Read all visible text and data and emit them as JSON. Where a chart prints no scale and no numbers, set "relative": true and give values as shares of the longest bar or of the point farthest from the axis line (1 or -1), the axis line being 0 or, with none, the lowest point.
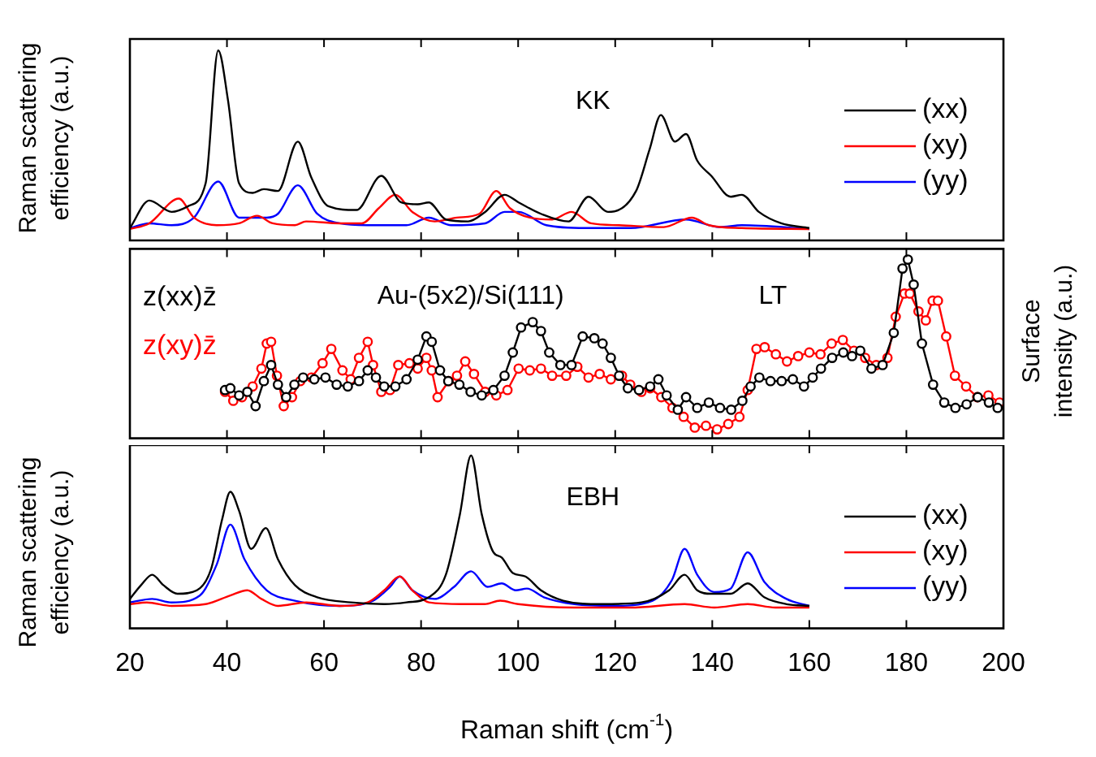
{
  "chart_data": [
    {
      "type": "line",
      "relative": true,
      "ylabel": "Raman scattering efficiency (a.u.)",
      "annotations": [
        "KK"
      ],
      "xlim": [
        20,
        200
      ],
      "xticks": [
        20,
        40,
        60,
        80,
        100,
        120,
        140,
        160,
        180,
        200
      ],
      "tick_labels": false,
      "legend": "right",
      "marker": "none",
      "series": [
        {
          "name": "(xx)",
          "color": "#000000",
          "x": [
            20,
            24,
            28.6,
            32,
            35.6,
            38.2,
            40.2,
            42.5,
            45.3,
            47.6,
            50.5,
            54.6,
            57.4,
            60.9,
            66.7,
            71.8,
            75.9,
            79.3,
            81.6,
            85.1,
            89.7,
            93.2,
            97.2,
            100.1,
            104.7,
            110.4,
            114.5,
            118.5,
            124.3,
            127.1,
            129.4,
            132.3,
            134.6,
            136.9,
            139.8,
            143.8,
            146.1,
            149.6,
            154.2,
            160
          ],
          "values": [
            0.065,
            0.21,
            0.15,
            0.18,
            0.3,
            1.0,
            0.74,
            0.3,
            0.25,
            0.27,
            0.26,
            0.52,
            0.33,
            0.18,
            0.16,
            0.34,
            0.2,
            0.19,
            0.2,
            0.11,
            0.1,
            0.15,
            0.24,
            0.2,
            0.14,
            0.1,
            0.23,
            0.15,
            0.26,
            0.48,
            0.66,
            0.52,
            0.56,
            0.42,
            0.34,
            0.23,
            0.24,
            0.15,
            0.09,
            0.065
          ]
        },
        {
          "name": "(xy)",
          "color": "#ff0000",
          "x": [
            20,
            24,
            30.1,
            33.2,
            37.9,
            42.5,
            46.2,
            49.4,
            54,
            56.3,
            63.2,
            67.8,
            71.3,
            74.7,
            78.2,
            82.8,
            87.4,
            92,
            95.5,
            98.3,
            102.4,
            107,
            111,
            115,
            120.8,
            130,
            135.8,
            139.3,
            146.1,
            160
          ],
          "values": [
            0.06,
            0.09,
            0.22,
            0.12,
            0.08,
            0.09,
            0.13,
            0.09,
            0.08,
            0.1,
            0.09,
            0.09,
            0.17,
            0.24,
            0.15,
            0.1,
            0.12,
            0.14,
            0.26,
            0.17,
            0.12,
            0.11,
            0.15,
            0.09,
            0.08,
            0.07,
            0.12,
            0.08,
            0.065,
            0.06
          ]
        },
        {
          "name": "(yy)",
          "color": "#0000ff",
          "x": [
            20,
            24,
            28.6,
            33.2,
            38.2,
            42.5,
            48.2,
            50.5,
            54.6,
            58.6,
            63.2,
            68.9,
            77,
            81.6,
            86.2,
            93.2,
            97.2,
            100.1,
            105.8,
            113.9,
            123.1,
            134.6,
            141.5,
            146.1,
            160
          ],
          "values": [
            0.065,
            0.09,
            0.08,
            0.12,
            0.31,
            0.12,
            0.12,
            0.14,
            0.29,
            0.14,
            0.09,
            0.08,
            0.08,
            0.12,
            0.08,
            0.09,
            0.15,
            0.15,
            0.08,
            0.065,
            0.065,
            0.11,
            0.07,
            0.08,
            0.06
          ]
        }
      ]
    },
    {
      "type": "line",
      "relative": true,
      "ylabel": "Surface intensity (a.u.)",
      "annotations": [
        "Au-(5x2)/Si(111)",
        "LT"
      ],
      "xlim": [
        20,
        200
      ],
      "xticks": [
        20,
        40,
        60,
        80,
        100,
        120,
        140,
        160,
        180,
        200
      ],
      "tick_labels": false,
      "legend": "top left",
      "marker": "circle",
      "series": [
        {
          "name": "z(xx)z̄",
          "color": "#000000",
          "x": [
            39.6,
            40.7,
            42.5,
            44.2,
            45.9,
            47.6,
            49.1,
            50.5,
            52.2,
            53.9,
            55.7,
            58,
            60.3,
            62.6,
            64.9,
            67.2,
            69,
            70.7,
            72.4,
            74.7,
            77,
            79.3,
            81.1,
            82.2,
            83.9,
            85.6,
            87.9,
            90.2,
            92.5,
            94.9,
            97.2,
            98.9,
            100.6,
            103,
            104.7,
            106.4,
            108.7,
            111,
            113.3,
            115.7,
            117.4,
            119.1,
            120.8,
            122.6,
            124.9,
            127.2,
            128.9,
            130.6,
            132.9,
            134.6,
            136.9,
            139.3,
            141.6,
            143.9,
            146.2,
            147.9,
            149.7,
            152,
            154.3,
            156.6,
            158.9,
            160.7,
            162.4,
            164.7,
            167,
            168.8,
            170.5,
            172.8,
            175.1,
            177.4,
            179.2,
            180.3,
            181.5,
            183.2,
            185.5,
            187.8,
            190.1,
            192.4,
            194.7,
            197,
            198.8
          ],
          "values": [
            0.27,
            0.28,
            0.24,
            0.26,
            0.18,
            0.32,
            0.41,
            0.3,
            0.23,
            0.3,
            0.34,
            0.33,
            0.34,
            0.3,
            0.29,
            0.32,
            0.38,
            0.34,
            0.29,
            0.29,
            0.33,
            0.44,
            0.57,
            0.54,
            0.38,
            0.32,
            0.3,
            0.26,
            0.24,
            0.27,
            0.35,
            0.48,
            0.62,
            0.65,
            0.6,
            0.48,
            0.41,
            0.41,
            0.57,
            0.56,
            0.53,
            0.45,
            0.35,
            0.28,
            0.27,
            0.29,
            0.33,
            0.24,
            0.16,
            0.23,
            0.17,
            0.2,
            0.17,
            0.16,
            0.21,
            0.29,
            0.34,
            0.32,
            0.32,
            0.33,
            0.29,
            0.34,
            0.39,
            0.45,
            0.48,
            0.46,
            0.49,
            0.39,
            0.41,
            0.59,
            0.95,
            1.0,
            0.86,
            0.53,
            0.3,
            0.2,
            0.17,
            0.19,
            0.23,
            0.2,
            0.17
          ]
        },
        {
          "name": "z(xy)z̄",
          "color": "#ff0000",
          "x": [
            39.6,
            41.3,
            43.1,
            45.3,
            47.1,
            48.2,
            49.1,
            50.3,
            51.7,
            53.4,
            55.1,
            57.4,
            59.7,
            61.5,
            63.8,
            65.5,
            67.2,
            69,
            70.1,
            71.8,
            73.6,
            75.3,
            77.6,
            79.3,
            81.1,
            82.2,
            83.4,
            85.7,
            87.4,
            89.1,
            90.9,
            93.2,
            95.5,
            97.8,
            100.1,
            102.4,
            104.7,
            107,
            109.9,
            112.2,
            114.5,
            116.8,
            119.1,
            121.4,
            123.1,
            125.4,
            127.2,
            129.5,
            131.8,
            134.1,
            136.4,
            138.7,
            141,
            143.3,
            145.6,
            147.3,
            149.1,
            150.8,
            153.1,
            155.4,
            157.7,
            160,
            162.3,
            164.6,
            166.9,
            169.2,
            171.5,
            173.8,
            176.1,
            177.8,
            179.6,
            180.7,
            182.5,
            184,
            185.4,
            186.5,
            188.2,
            190,
            192.3,
            194.6,
            196.9,
            199.2
          ],
          "values": [
            0.26,
            0.21,
            0.23,
            0.29,
            0.39,
            0.53,
            0.54,
            0.35,
            0.18,
            0.23,
            0.32,
            0.34,
            0.42,
            0.5,
            0.38,
            0.33,
            0.45,
            0.54,
            0.41,
            0.26,
            0.27,
            0.41,
            0.42,
            0.39,
            0.45,
            0.38,
            0.23,
            0.32,
            0.35,
            0.43,
            0.36,
            0.26,
            0.24,
            0.27,
            0.39,
            0.38,
            0.39,
            0.35,
            0.35,
            0.4,
            0.34,
            0.36,
            0.33,
            0.35,
            0.3,
            0.26,
            0.28,
            0.23,
            0.17,
            0.12,
            0.06,
            0.07,
            0.05,
            0.08,
            0.12,
            0.27,
            0.5,
            0.51,
            0.47,
            0.43,
            0.46,
            0.48,
            0.47,
            0.53,
            0.55,
            0.49,
            0.45,
            0.41,
            0.45,
            0.68,
            0.81,
            0.81,
            0.71,
            0.66,
            0.77,
            0.77,
            0.57,
            0.35,
            0.29,
            0.23,
            0.24,
            0.2
          ]
        }
      ]
    },
    {
      "type": "line",
      "relative": true,
      "xlabel": "Raman shift (cm$^{-1}$)",
      "ylabel": "Raman scattering efficiency (a.u.)",
      "annotations": [
        "EBH"
      ],
      "xlim": [
        20,
        200
      ],
      "xticks": [
        20,
        40,
        60,
        80,
        100,
        120,
        140,
        160,
        180,
        200
      ],
      "tick_labels": "x",
      "legend": "right",
      "marker": "none",
      "series": [
        {
          "name": "(xx)",
          "color": "#000000",
          "x": [
            20,
            22.3,
            24.6,
            26.9,
            29.8,
            33.8,
            36.7,
            39,
            40.7,
            42.5,
            45,
            48,
            50.5,
            54,
            58.6,
            65.5,
            72.4,
            77,
            81.6,
            85.1,
            88,
            90.3,
            92.5,
            94.9,
            96.6,
            98.9,
            101.5,
            104.7,
            109.3,
            117.3,
            125.4,
            131.1,
            134.3,
            136.9,
            139.8,
            143.8,
            147.3,
            150.7,
            155.3,
            160
          ],
          "values": [
            0.17,
            0.25,
            0.31,
            0.25,
            0.2,
            0.22,
            0.34,
            0.63,
            0.79,
            0.68,
            0.46,
            0.58,
            0.4,
            0.25,
            0.18,
            0.15,
            0.14,
            0.15,
            0.18,
            0.31,
            0.66,
            1.0,
            0.66,
            0.44,
            0.41,
            0.32,
            0.3,
            0.22,
            0.16,
            0.14,
            0.15,
            0.22,
            0.31,
            0.22,
            0.2,
            0.2,
            0.26,
            0.18,
            0.14,
            0.13
          ]
        },
        {
          "name": "(xy)",
          "color": "#ff0000",
          "x": [
            20,
            23.5,
            28.6,
            35.6,
            40.7,
            44.2,
            47.1,
            50.5,
            56.3,
            63.2,
            69,
            72.4,
            75.6,
            78.2,
            81.6,
            88.5,
            93.1,
            96.3,
            100,
            111.6,
            123.1,
            134.3,
            140.4,
            147.3,
            153,
            160
          ],
          "values": [
            0.14,
            0.15,
            0.13,
            0.14,
            0.19,
            0.22,
            0.17,
            0.13,
            0.15,
            0.13,
            0.15,
            0.22,
            0.3,
            0.22,
            0.15,
            0.14,
            0.14,
            0.16,
            0.14,
            0.12,
            0.12,
            0.14,
            0.12,
            0.14,
            0.12,
            0.12
          ]
        },
        {
          "name": "(yy)",
          "color": "#0000ff",
          "x": [
            20,
            24.6,
            28.6,
            34.4,
            37.9,
            40.7,
            43.6,
            48.2,
            54,
            63.2,
            70.1,
            73.6,
            75.6,
            78.2,
            82.8,
            86.8,
            90.3,
            93.7,
            96.6,
            99.5,
            101.8,
            105.3,
            111.6,
            119.7,
            127.7,
            131.7,
            134.3,
            136.9,
            140.4,
            143.8,
            147.3,
            150.7,
            155.3,
            160
          ],
          "values": [
            0.15,
            0.17,
            0.15,
            0.19,
            0.37,
            0.6,
            0.4,
            0.22,
            0.16,
            0.13,
            0.16,
            0.24,
            0.3,
            0.22,
            0.17,
            0.24,
            0.33,
            0.24,
            0.26,
            0.22,
            0.23,
            0.18,
            0.14,
            0.13,
            0.16,
            0.28,
            0.46,
            0.31,
            0.21,
            0.23,
            0.44,
            0.27,
            0.17,
            0.13
          ]
        }
      ]
    }
  ]
}
